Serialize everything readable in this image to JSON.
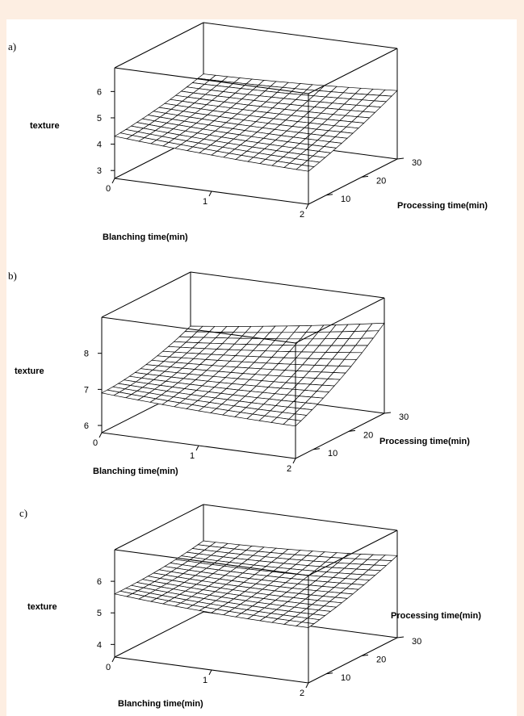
{
  "chart_data": [
    {
      "type": "surface3d",
      "panel_label": "a)",
      "zlabel": "texture",
      "xlabel": "Blanching time(min)",
      "ylabel": "Processing time(min)",
      "x_ticks": [
        "0",
        "1",
        "2"
      ],
      "y_ticks": [
        "10",
        "20",
        "30"
      ],
      "z_ticks": [
        "3",
        "4",
        "5",
        "6"
      ],
      "xlim": [
        0,
        2
      ],
      "ylim": [
        5,
        30
      ],
      "zlim": [
        2.7,
        6.9
      ],
      "surface": {
        "c0": 4.3,
        "cx": -0.55,
        "cy": 0.3,
        "cxx": 0.2,
        "cyy": 0.35,
        "cxy": 0.7
      }
    },
    {
      "type": "surface3d",
      "panel_label": "b)",
      "zlabel": "texture",
      "xlabel": "Blanching time(min)",
      "ylabel": "Processing time(min)",
      "x_ticks": [
        "0",
        "1",
        "2"
      ],
      "y_ticks": [
        "10",
        "20",
        "30"
      ],
      "z_ticks": [
        "6",
        "7",
        "8"
      ],
      "xlim": [
        0,
        2
      ],
      "ylim": [
        5,
        30
      ],
      "zlim": [
        5.8,
        9.0
      ],
      "surface": {
        "c0": 6.9,
        "cx": -0.35,
        "cy": 0.05,
        "cxx": 0.15,
        "cyy": 0.55,
        "cxy": 1.0
      }
    },
    {
      "type": "surface3d",
      "panel_label": "c)",
      "zlabel": "texture",
      "xlabel": "Blanching time(min)",
      "ylabel": "Processing time(min)",
      "x_ticks": [
        "0",
        "1",
        "2"
      ],
      "y_ticks": [
        "10",
        "20",
        "30"
      ],
      "z_ticks": [
        "4",
        "5",
        "6"
      ],
      "xlim": [
        0,
        2
      ],
      "ylim": [
        5,
        30
      ],
      "zlim": [
        3.6,
        7.0
      ],
      "surface": {
        "c0": 5.6,
        "cx": -0.5,
        "cy": -0.05,
        "cxx": 0.25,
        "cyy": 0.3,
        "cxy": 0.6
      }
    }
  ]
}
